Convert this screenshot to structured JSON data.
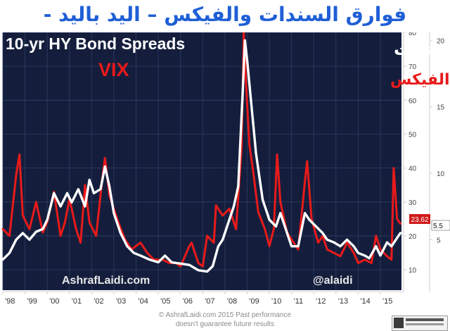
{
  "page_title": "فوارق السندات والفيكس – اليد باليد -",
  "footer": {
    "line1": "© AshrafLaidi.com 2015 Past performance",
    "line2": "doesn't guarantee future results"
  },
  "chart_data": {
    "type": "line",
    "title": "10-yr HY Bond Spreads",
    "watermark_left": "AshrafLaidi.com",
    "watermark_right": "@alaidi",
    "legend_placement": "top",
    "background_color": "#141e3c",
    "grid": true,
    "x_tick_labels": [
      "'98",
      "'99",
      "'00",
      "'01",
      "'02",
      "'03",
      "'04",
      "'05",
      "'06",
      "'07",
      "'08",
      "'09",
      "'10",
      "'11",
      "'12",
      "'13",
      "'14",
      "'15"
    ],
    "xlim": [
      1998.0,
      2015.95
    ],
    "y_left": {
      "ticks": [
        10,
        20,
        30,
        40,
        50,
        60,
        70,
        80
      ],
      "ylim": [
        4,
        80
      ]
    },
    "y_right": {
      "ticks": [
        5,
        10,
        15,
        20
      ],
      "ylim": [
        1.2,
        20.6
      ]
    },
    "series": [
      {
        "name": "VIX",
        "name_ar": "الفيكس",
        "color": "#e81a1a",
        "axis": "left",
        "last_label": "23.62",
        "x": [
          1998.0,
          1998.3,
          1998.6,
          1998.75,
          1998.9,
          1999.2,
          1999.5,
          1999.8,
          2000.0,
          2000.3,
          2000.6,
          2000.8,
          2001.0,
          2001.3,
          2001.5,
          2001.7,
          2001.9,
          2002.2,
          2002.5,
          2002.6,
          2002.8,
          2003.0,
          2003.2,
          2003.5,
          2003.8,
          2004.2,
          2004.5,
          2004.8,
          2005.2,
          2005.5,
          2005.8,
          2006.0,
          2006.4,
          2006.5,
          2006.8,
          2007.0,
          2007.2,
          2007.5,
          2007.6,
          2007.9,
          2008.2,
          2008.5,
          2008.75,
          2008.85,
          2008.95,
          2009.1,
          2009.25,
          2009.5,
          2009.8,
          2010.0,
          2010.2,
          2010.35,
          2010.5,
          2010.8,
          2011.0,
          2011.3,
          2011.6,
          2011.7,
          2011.9,
          2012.2,
          2012.4,
          2012.6,
          2012.9,
          2013.2,
          2013.5,
          2013.8,
          2014.0,
          2014.3,
          2014.6,
          2014.8,
          2015.0,
          2015.3,
          2015.5,
          2015.6,
          2015.75,
          2015.9
        ],
        "y": [
          22,
          20,
          38,
          44,
          26,
          22,
          30,
          21,
          24,
          33,
          20,
          24,
          31,
          22,
          18,
          35,
          24,
          20,
          38,
          43,
          32,
          28,
          24,
          19,
          16,
          18,
          15,
          13,
          13,
          12,
          12,
          11,
          17,
          18,
          12,
          11,
          20,
          18,
          29,
          26,
          28,
          22,
          46,
          80,
          65,
          47,
          40,
          27,
          22,
          17,
          22,
          44,
          30,
          21,
          19,
          16,
          36,
          42,
          25,
          18,
          20,
          16,
          15,
          14,
          18,
          15,
          12,
          13,
          12,
          20,
          16,
          14,
          13,
          40,
          25,
          23.62
        ]
      },
      {
        "name": "10-yr HY Bond Spreads",
        "name_ar": "فوارق السندات",
        "color": "#ffffff",
        "axis": "right",
        "last_label": "5.5",
        "x": [
          1998.0,
          1998.3,
          1998.6,
          1998.9,
          1999.2,
          1999.5,
          1999.8,
          2000.0,
          2000.3,
          2000.6,
          2000.9,
          2001.1,
          2001.4,
          2001.7,
          2001.9,
          2002.1,
          2002.4,
          2002.6,
          2002.8,
          2003.0,
          2003.3,
          2003.6,
          2003.9,
          2004.2,
          2004.6,
          2005.0,
          2005.3,
          2005.6,
          2006.0,
          2006.4,
          2006.8,
          2007.2,
          2007.45,
          2007.7,
          2007.9,
          2008.1,
          2008.4,
          2008.6,
          2008.8,
          2008.9,
          2009.0,
          2009.2,
          2009.4,
          2009.7,
          2010.0,
          2010.3,
          2010.5,
          2010.8,
          2011.0,
          2011.3,
          2011.6,
          2011.8,
          2012.1,
          2012.4,
          2012.6,
          2012.9,
          2013.2,
          2013.5,
          2013.8,
          2014.0,
          2014.3,
          2014.5,
          2014.8,
          2015.0,
          2015.3,
          2015.5,
          2015.7,
          2015.9
        ],
        "y": [
          3.5,
          4.0,
          5.0,
          5.5,
          5.0,
          5.6,
          5.8,
          6.5,
          8.5,
          7.5,
          8.5,
          7.8,
          8.8,
          7.5,
          9.5,
          8.5,
          8.8,
          10.5,
          9.0,
          7.0,
          5.5,
          4.5,
          4.0,
          3.8,
          3.5,
          3.3,
          3.8,
          3.3,
          3.2,
          3.1,
          2.7,
          2.6,
          3.0,
          4.5,
          5.0,
          6.0,
          7.5,
          9.0,
          16.0,
          20.0,
          18.5,
          15.0,
          11.5,
          8.0,
          6.5,
          6.0,
          7.0,
          5.5,
          4.5,
          4.5,
          7.0,
          6.5,
          6.0,
          5.5,
          5.0,
          4.8,
          4.5,
          5.0,
          4.5,
          4.0,
          3.8,
          3.6,
          4.5,
          3.8,
          4.8,
          4.5,
          5.0,
          5.5
        ]
      }
    ]
  }
}
